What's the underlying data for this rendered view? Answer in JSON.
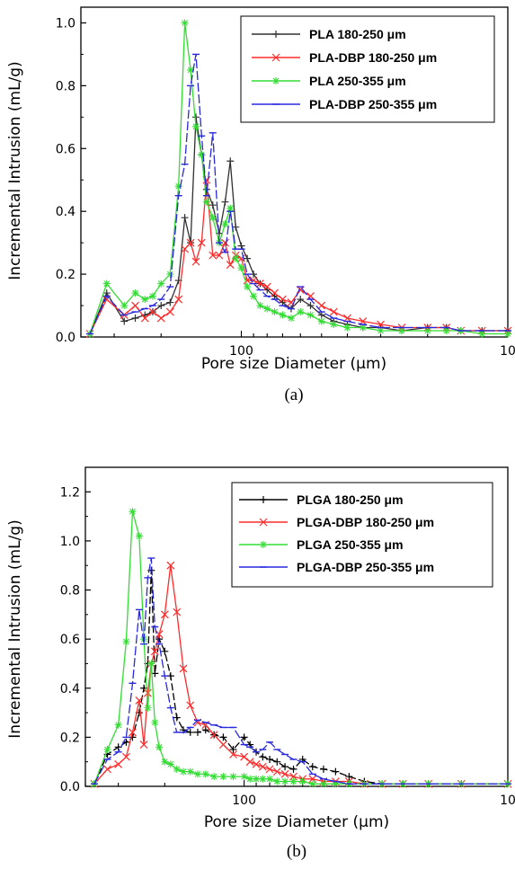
{
  "chart_data": [
    {
      "type": "line",
      "panel_label": "(a)",
      "xlabel": "Pore size Diameter (μm)",
      "ylabel": "Incremental Intrusion (mL/g)",
      "x_scale": "log",
      "x_reversed": true,
      "xlim": [
        400,
        10
      ],
      "ylim": [
        0,
        1.05
      ],
      "x_ticks": [
        100,
        10
      ],
      "y_ticks": [
        0.0,
        0.2,
        0.4,
        0.6,
        0.8,
        1.0
      ],
      "y_tick_labels": [
        "0.0",
        "0.2",
        "0.4",
        "0.6",
        "0.8",
        "1.0"
      ],
      "legend_position": "top-right",
      "series": [
        {
          "name": "PLA 180-250 μm",
          "color": "#303030",
          "marker": "plus",
          "x": [
            370,
            320,
            275,
            250,
            230,
            215,
            200,
            185,
            172,
            163,
            155,
            148,
            141,
            135,
            128,
            121,
            115,
            110,
            105,
            100,
            95,
            90,
            85,
            80,
            75,
            70,
            65,
            60,
            55,
            50,
            45,
            40,
            35,
            30,
            25,
            20,
            17,
            15,
            12.5,
            10
          ],
          "y": [
            0.01,
            0.14,
            0.05,
            0.06,
            0.07,
            0.08,
            0.1,
            0.11,
            0.18,
            0.38,
            0.3,
            0.7,
            0.58,
            0.47,
            0.42,
            0.33,
            0.43,
            0.56,
            0.35,
            0.29,
            0.25,
            0.2,
            0.17,
            0.15,
            0.13,
            0.11,
            0.09,
            0.12,
            0.1,
            0.07,
            0.05,
            0.04,
            0.03,
            0.03,
            0.02,
            0.03,
            0.03,
            0.02,
            0.02,
            0.02
          ]
        },
        {
          "name": "PLA-DBP 180-250 μm",
          "color": "#ff2a2a",
          "marker": "cross",
          "x": [
            370,
            320,
            275,
            250,
            230,
            215,
            200,
            185,
            172,
            163,
            155,
            148,
            141,
            135,
            128,
            121,
            115,
            110,
            105,
            100,
            95,
            90,
            85,
            80,
            75,
            70,
            65,
            60,
            55,
            50,
            45,
            40,
            35,
            30,
            25,
            20,
            17,
            15,
            12.5,
            10
          ],
          "y": [
            0.01,
            0.12,
            0.07,
            0.1,
            0.06,
            0.08,
            0.06,
            0.08,
            0.12,
            0.28,
            0.3,
            0.24,
            0.3,
            0.5,
            0.26,
            0.26,
            0.3,
            0.23,
            0.26,
            0.25,
            0.18,
            0.18,
            0.17,
            0.16,
            0.14,
            0.12,
            0.11,
            0.15,
            0.13,
            0.1,
            0.08,
            0.06,
            0.05,
            0.04,
            0.03,
            0.03,
            0.03,
            0.02,
            0.02,
            0.02
          ]
        },
        {
          "name": "PLA 250-355 μm",
          "color": "#33dd33",
          "marker": "asterisk",
          "x": [
            370,
            320,
            275,
            250,
            230,
            215,
            200,
            185,
            172,
            163,
            155,
            148,
            141,
            135,
            128,
            121,
            115,
            110,
            105,
            100,
            95,
            90,
            85,
            80,
            75,
            70,
            65,
            60,
            55,
            50,
            45,
            40,
            35,
            30,
            25,
            20,
            17,
            15,
            12.5,
            10
          ],
          "y": [
            0.01,
            0.17,
            0.1,
            0.14,
            0.12,
            0.13,
            0.17,
            0.2,
            0.48,
            1.0,
            0.85,
            0.67,
            0.58,
            0.43,
            0.38,
            0.3,
            0.36,
            0.41,
            0.25,
            0.22,
            0.16,
            0.13,
            0.1,
            0.09,
            0.08,
            0.07,
            0.06,
            0.08,
            0.07,
            0.05,
            0.04,
            0.03,
            0.03,
            0.02,
            0.02,
            0.02,
            0.02,
            0.02,
            0.01,
            0.01
          ]
        },
        {
          "name": "PLA-DBP 250-355 μm",
          "color": "#2828dd",
          "marker": "dash",
          "x": [
            370,
            320,
            275,
            250,
            230,
            215,
            200,
            185,
            172,
            163,
            155,
            148,
            141,
            135,
            128,
            121,
            115,
            110,
            105,
            100,
            95,
            90,
            85,
            80,
            75,
            70,
            65,
            60,
            55,
            50,
            45,
            40,
            35,
            30,
            25,
            20,
            17,
            15,
            12.5,
            10
          ],
          "y": [
            0.01,
            0.13,
            0.07,
            0.08,
            0.09,
            0.1,
            0.12,
            0.16,
            0.45,
            0.55,
            0.8,
            0.9,
            0.64,
            0.45,
            0.65,
            0.3,
            0.27,
            0.4,
            0.28,
            0.28,
            0.2,
            0.17,
            0.15,
            0.13,
            0.12,
            0.1,
            0.09,
            0.16,
            0.12,
            0.08,
            0.06,
            0.05,
            0.04,
            0.03,
            0.03,
            0.03,
            0.03,
            0.02,
            0.02,
            0.02
          ]
        }
      ]
    },
    {
      "type": "line",
      "panel_label": "(b)",
      "xlabel": "Pore size Diameter (μm)",
      "ylabel": "Incremental Intrusion (mL/g)",
      "x_scale": "log",
      "x_reversed": true,
      "xlim": [
        400,
        10
      ],
      "ylim": [
        0,
        1.3
      ],
      "x_ticks": [
        100,
        10
      ],
      "y_ticks": [
        0.0,
        0.2,
        0.4,
        0.6,
        0.8,
        1.0,
        1.2
      ],
      "y_tick_labels": [
        "0.0",
        "0.2",
        "0.4",
        "0.6",
        "0.8",
        "1.0",
        "1.2"
      ],
      "legend_position": "top-right",
      "series": [
        {
          "name": "PLGA 180-250 μm",
          "color": "#000000",
          "marker": "plus",
          "x": [
            370,
            330,
            300,
            280,
            265,
            250,
            240,
            232,
            225,
            218,
            210,
            200,
            190,
            180,
            170,
            160,
            150,
            140,
            130,
            120,
            110,
            100,
            95,
            90,
            85,
            80,
            75,
            70,
            65,
            60,
            55,
            50,
            45,
            40,
            35,
            30,
            25,
            20,
            15,
            10
          ],
          "y": [
            0.01,
            0.13,
            0.16,
            0.18,
            0.2,
            0.3,
            0.4,
            0.5,
            0.88,
            0.46,
            0.6,
            0.55,
            0.45,
            0.28,
            0.23,
            0.22,
            0.22,
            0.23,
            0.21,
            0.2,
            0.15,
            0.2,
            0.17,
            0.14,
            0.12,
            0.11,
            0.1,
            0.08,
            0.07,
            0.11,
            0.08,
            0.07,
            0.06,
            0.04,
            0.02,
            0.01,
            0.01,
            0.01,
            0.01,
            0.01
          ]
        },
        {
          "name": "PLGA-DBP 180-250 μm",
          "color": "#ff2a2a",
          "marker": "cross",
          "x": [
            370,
            330,
            300,
            280,
            265,
            250,
            240,
            232,
            225,
            218,
            210,
            200,
            190,
            180,
            170,
            160,
            150,
            140,
            130,
            120,
            110,
            100,
            95,
            90,
            85,
            80,
            75,
            70,
            65,
            60,
            55,
            50,
            45,
            40,
            35,
            30,
            25,
            20,
            15,
            10
          ],
          "y": [
            0.01,
            0.07,
            0.09,
            0.12,
            0.22,
            0.35,
            0.17,
            0.38,
            0.5,
            0.55,
            0.62,
            0.7,
            0.9,
            0.71,
            0.48,
            0.33,
            0.26,
            0.25,
            0.21,
            0.17,
            0.13,
            0.12,
            0.1,
            0.09,
            0.08,
            0.07,
            0.06,
            0.05,
            0.04,
            0.03,
            0.03,
            0.02,
            0.02,
            0.02,
            0.01,
            0.01,
            0.01,
            0.01,
            0.01,
            0.01
          ]
        },
        {
          "name": "PLGA 250-355 μm",
          "color": "#33dd33",
          "marker": "asterisk",
          "x": [
            370,
            330,
            300,
            280,
            265,
            250,
            240,
            232,
            225,
            218,
            210,
            200,
            190,
            180,
            170,
            160,
            150,
            140,
            130,
            120,
            110,
            100,
            95,
            90,
            85,
            80,
            75,
            70,
            65,
            60,
            55,
            50,
            45,
            40,
            35,
            30,
            25,
            20,
            15,
            10
          ],
          "y": [
            0.01,
            0.15,
            0.25,
            0.59,
            1.12,
            1.02,
            0.6,
            0.32,
            0.5,
            0.26,
            0.16,
            0.1,
            0.09,
            0.07,
            0.06,
            0.06,
            0.05,
            0.05,
            0.04,
            0.04,
            0.04,
            0.04,
            0.03,
            0.03,
            0.03,
            0.03,
            0.02,
            0.02,
            0.02,
            0.02,
            0.01,
            0.01,
            0.01,
            0.01,
            0.01,
            0.01,
            0.01,
            0.01,
            0.01,
            0.01
          ]
        },
        {
          "name": "PLGA-DBP 250-355 μm",
          "color": "#2828dd",
          "marker": "dash",
          "x": [
            370,
            330,
            300,
            280,
            265,
            250,
            240,
            232,
            225,
            218,
            210,
            200,
            190,
            180,
            170,
            160,
            150,
            140,
            130,
            120,
            110,
            100,
            95,
            90,
            85,
            80,
            75,
            70,
            65,
            60,
            55,
            50,
            45,
            40,
            35,
            30,
            25,
            20,
            15,
            10
          ],
          "y": [
            0.01,
            0.11,
            0.14,
            0.2,
            0.42,
            0.72,
            0.58,
            0.85,
            0.93,
            0.65,
            0.58,
            0.45,
            0.32,
            0.22,
            0.22,
            0.24,
            0.27,
            0.26,
            0.25,
            0.24,
            0.24,
            0.17,
            0.16,
            0.14,
            0.15,
            0.18,
            0.15,
            0.13,
            0.11,
            0.1,
            0.05,
            0.03,
            0.02,
            0.01,
            0.01,
            0.01,
            0.01,
            0.01,
            0.01,
            0.01
          ]
        }
      ]
    }
  ]
}
